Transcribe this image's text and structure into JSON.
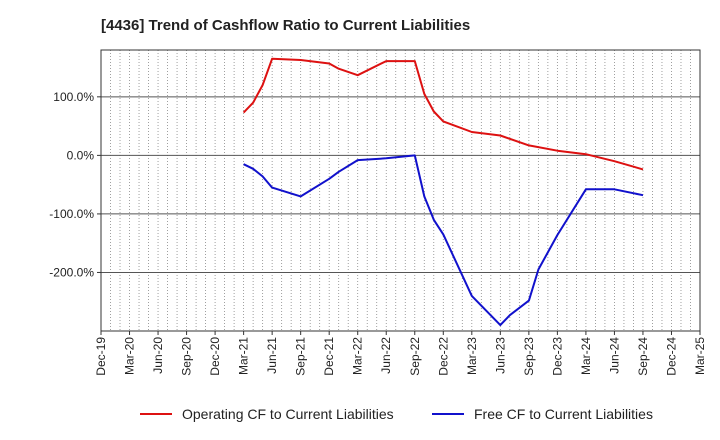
{
  "chart_data": {
    "type": "line",
    "title": "[4436]  Trend of Cashflow Ratio to Current Liabilities",
    "xlabel": "",
    "ylabel": "",
    "x_tick_labels": [
      "Dec-19",
      "Mar-20",
      "Jun-20",
      "Sep-20",
      "Dec-20",
      "Mar-21",
      "Jun-21",
      "Sep-21",
      "Dec-21",
      "Mar-22",
      "Jun-22",
      "Sep-22",
      "Dec-22",
      "Mar-23",
      "Jun-23",
      "Sep-23",
      "Dec-23",
      "Mar-24",
      "Jun-24",
      "Sep-24",
      "Dec-24",
      "Mar-25"
    ],
    "x_range": [
      "2019-12",
      "2025-03"
    ],
    "y_ticks": [
      100,
      0,
      -100,
      -200
    ],
    "y_tick_labels": [
      "100.0%",
      "0.0%",
      "-100.0%",
      "-200.0%"
    ],
    "ylim": [
      -300,
      180
    ],
    "grid": true,
    "legend_position": "bottom",
    "series": [
      {
        "name": "Operating CF to Current Liabilities",
        "color": "#dd1111",
        "points": [
          [
            "2021-03",
            73
          ],
          [
            "2021-04",
            90
          ],
          [
            "2021-05",
            120
          ],
          [
            "2021-06",
            165
          ],
          [
            "2021-09",
            163
          ],
          [
            "2021-12",
            157
          ],
          [
            "2022-01",
            148
          ],
          [
            "2022-03",
            137
          ],
          [
            "2022-06",
            161
          ],
          [
            "2022-09",
            161
          ],
          [
            "2022-10",
            105
          ],
          [
            "2022-11",
            75
          ],
          [
            "2022-12",
            58
          ],
          [
            "2023-03",
            40
          ],
          [
            "2023-06",
            34
          ],
          [
            "2023-09",
            17
          ],
          [
            "2023-12",
            8
          ],
          [
            "2024-03",
            2
          ],
          [
            "2024-06",
            -10
          ],
          [
            "2024-09",
            -24
          ]
        ]
      },
      {
        "name": "Free CF to Current Liabilities",
        "color": "#1111cc",
        "points": [
          [
            "2021-03",
            -15
          ],
          [
            "2021-04",
            -23
          ],
          [
            "2021-05",
            -36
          ],
          [
            "2021-06",
            -55
          ],
          [
            "2021-09",
            -70
          ],
          [
            "2021-12",
            -40
          ],
          [
            "2022-01",
            -28
          ],
          [
            "2022-03",
            -8
          ],
          [
            "2022-06",
            -5
          ],
          [
            "2022-09",
            0
          ],
          [
            "2022-10",
            -70
          ],
          [
            "2022-11",
            -110
          ],
          [
            "2022-12",
            -135
          ],
          [
            "2023-03",
            -240
          ],
          [
            "2023-06",
            -290
          ],
          [
            "2023-07",
            -273
          ],
          [
            "2023-09",
            -248
          ],
          [
            "2023-10",
            -195
          ],
          [
            "2023-12",
            -136
          ],
          [
            "2024-03",
            -58
          ],
          [
            "2024-06",
            -58
          ],
          [
            "2024-09",
            -68
          ]
        ]
      }
    ]
  }
}
